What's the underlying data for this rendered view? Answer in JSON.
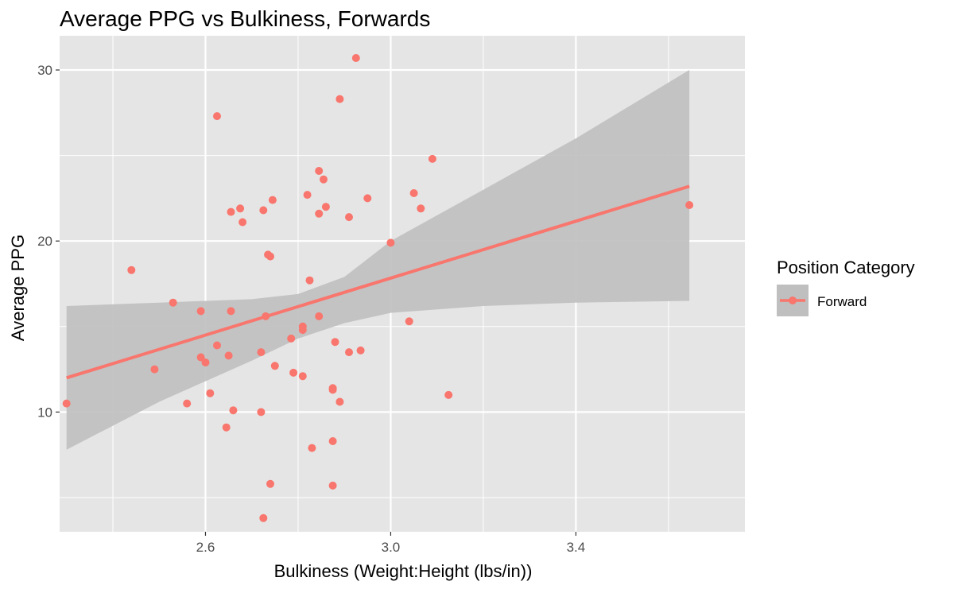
{
  "chart_data": {
    "type": "scatter",
    "title": "Average PPG vs Bulkiness, Forwards",
    "xlabel": "Bulkiness (Weight:Height (lbs/in))",
    "ylabel": "Average PPG",
    "xlim": [
      2.285,
      3.765
    ],
    "ylim": [
      3.0,
      32.0
    ],
    "x_ticks": [
      2.6,
      3.0,
      3.4
    ],
    "x_tick_labels": [
      "2.6",
      "3.0",
      "3.4"
    ],
    "y_ticks": [
      10,
      20,
      30
    ],
    "y_tick_labels": [
      "10",
      "20",
      "30"
    ],
    "grid": true,
    "panel_background": "#e5e5e5",
    "grid_color": "#ffffff",
    "legend": {
      "title": "Position Category",
      "placement": "right",
      "entries": [
        "Forward"
      ]
    },
    "series": [
      {
        "name": "Forward",
        "color": "#f8766d",
        "points": [
          [
            2.3,
            10.5
          ],
          [
            2.44,
            18.3
          ],
          [
            2.49,
            12.5
          ],
          [
            2.53,
            16.4
          ],
          [
            2.56,
            10.5
          ],
          [
            2.59,
            15.9
          ],
          [
            2.59,
            13.2
          ],
          [
            2.6,
            12.9
          ],
          [
            2.61,
            11.1
          ],
          [
            2.625,
            27.3
          ],
          [
            2.625,
            13.9
          ],
          [
            2.645,
            9.1
          ],
          [
            2.65,
            13.3
          ],
          [
            2.655,
            21.7
          ],
          [
            2.655,
            15.9
          ],
          [
            2.66,
            10.1
          ],
          [
            2.675,
            21.9
          ],
          [
            2.68,
            21.1
          ],
          [
            2.72,
            13.5
          ],
          [
            2.72,
            10.0
          ],
          [
            2.725,
            21.8
          ],
          [
            2.725,
            3.8
          ],
          [
            2.73,
            15.6
          ],
          [
            2.735,
            19.2
          ],
          [
            2.74,
            19.1
          ],
          [
            2.74,
            5.8
          ],
          [
            2.745,
            22.4
          ],
          [
            2.75,
            12.7
          ],
          [
            2.785,
            14.3
          ],
          [
            2.79,
            12.3
          ],
          [
            2.81,
            14.8
          ],
          [
            2.81,
            15.0
          ],
          [
            2.81,
            12.1
          ],
          [
            2.82,
            22.7
          ],
          [
            2.825,
            17.7
          ],
          [
            2.83,
            7.9
          ],
          [
            2.845,
            24.1
          ],
          [
            2.845,
            21.6
          ],
          [
            2.845,
            15.6
          ],
          [
            2.855,
            23.6
          ],
          [
            2.86,
            22.0
          ],
          [
            2.875,
            11.4
          ],
          [
            2.875,
            11.3
          ],
          [
            2.875,
            8.3
          ],
          [
            2.875,
            5.7
          ],
          [
            2.88,
            14.1
          ],
          [
            2.89,
            28.3
          ],
          [
            2.89,
            10.6
          ],
          [
            2.91,
            13.5
          ],
          [
            2.91,
            21.4
          ],
          [
            2.925,
            30.7
          ],
          [
            2.935,
            13.6
          ],
          [
            2.95,
            22.5
          ],
          [
            3.0,
            19.9
          ],
          [
            3.04,
            15.3
          ],
          [
            3.05,
            22.8
          ],
          [
            3.065,
            21.9
          ],
          [
            3.09,
            24.8
          ],
          [
            3.125,
            11.0
          ],
          [
            3.645,
            22.1
          ]
        ]
      }
    ],
    "trend_line": {
      "method": "lm",
      "x": [
        2.3,
        3.645
      ],
      "y": [
        12.0,
        23.2
      ],
      "color": "#f8766d"
    },
    "confidence_band": {
      "color": "#bfbfbf",
      "x": [
        2.3,
        2.5,
        2.7,
        2.8,
        2.9,
        3.0,
        3.2,
        3.4,
        3.645
      ],
      "lower": [
        7.8,
        10.6,
        13.0,
        14.3,
        15.2,
        15.8,
        16.2,
        16.4,
        16.5
      ],
      "upper": [
        16.2,
        16.4,
        16.6,
        16.9,
        17.9,
        20.0,
        23.0,
        26.0,
        30.0
      ]
    }
  }
}
